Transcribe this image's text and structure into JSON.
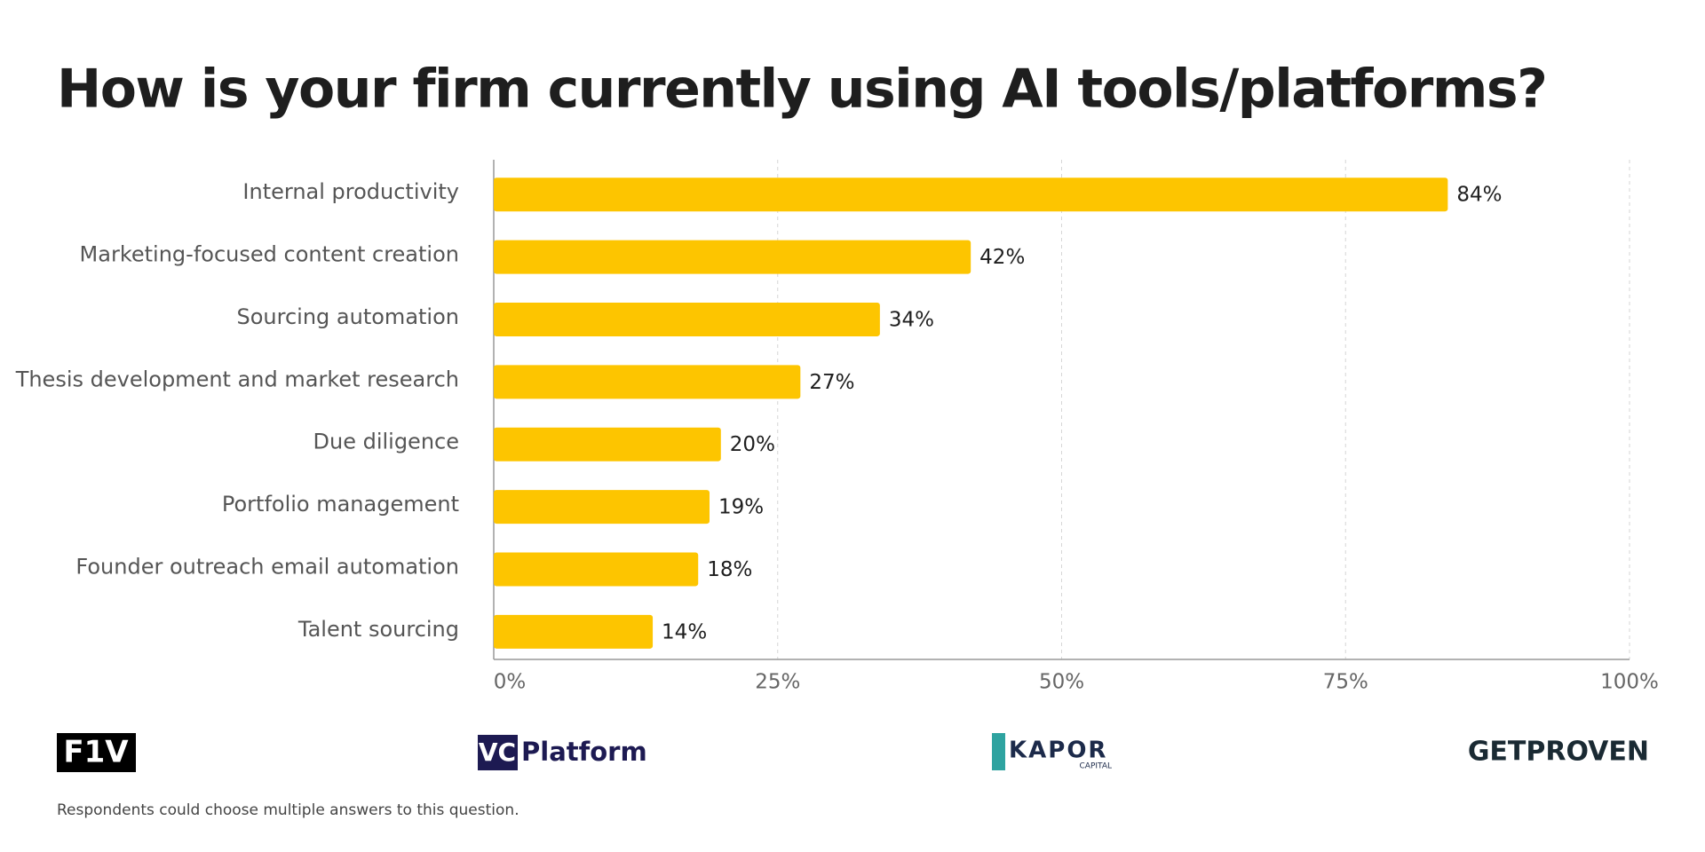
{
  "chart_data": {
    "type": "bar",
    "orientation": "horizontal",
    "title": "How is your firm currently using AI tools/platforms?",
    "categories": [
      "Internal productivity",
      "Marketing-focused content creation",
      "Sourcing automation",
      "Thesis development and market research",
      "Due diligence",
      "Portfolio management",
      "Founder outreach email automation",
      "Talent sourcing"
    ],
    "values": [
      84,
      42,
      34,
      27,
      20,
      19,
      18,
      14
    ],
    "value_labels": [
      "84%",
      "42%",
      "34%",
      "27%",
      "20%",
      "19%",
      "18%",
      "14%"
    ],
    "color": "#fdc500",
    "xlim": [
      0,
      100
    ],
    "xticks": [
      {
        "value": 0,
        "label": "0%"
      },
      {
        "value": 25,
        "label": "25%"
      },
      {
        "value": 50,
        "label": "50%"
      },
      {
        "value": 75,
        "label": "75%"
      },
      {
        "value": 100,
        "label": "100%"
      }
    ],
    "grid": true
  },
  "footer": {
    "logos": [
      "F1V",
      "VC",
      "Platform",
      "KAPOR",
      "CAPITAL",
      "GETPROVEN"
    ],
    "note": "Respondents could choose multiple answers to this question."
  }
}
